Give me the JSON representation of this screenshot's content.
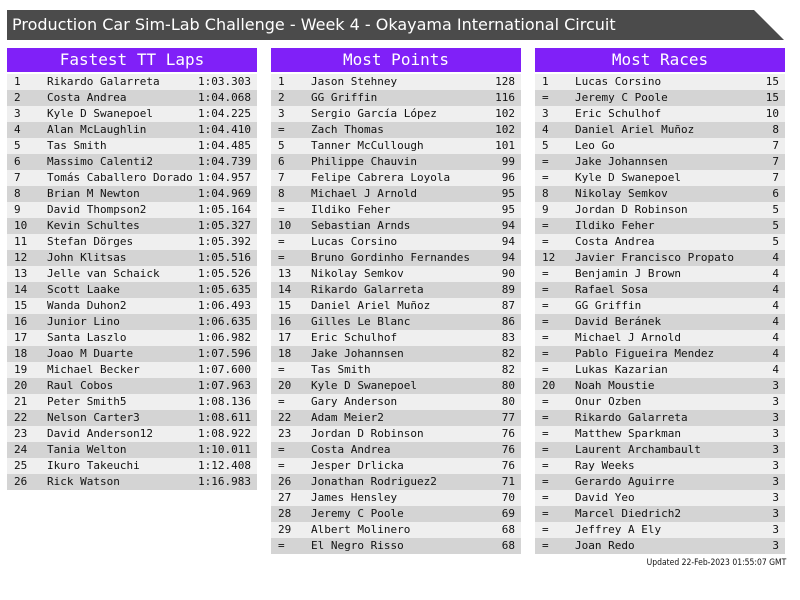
{
  "title": "Production Car Sim-Lab Challenge - Week 4 - Okayama International Circuit",
  "tables": [
    {
      "title": "Fastest TT Laps",
      "rows": [
        [
          "1",
          "Rikardo Galarreta",
          "1:03.303"
        ],
        [
          "2",
          "Costa Andrea",
          "1:04.068"
        ],
        [
          "3",
          "Kyle D Swanepoel",
          "1:04.225"
        ],
        [
          "4",
          "Alan McLaughlin",
          "1:04.410"
        ],
        [
          "5",
          "Tas Smith",
          "1:04.485"
        ],
        [
          "6",
          "Massimo Calenti2",
          "1:04.739"
        ],
        [
          "7",
          "Tomás Caballero Dorado",
          "1:04.957"
        ],
        [
          "8",
          "Brian M Newton",
          "1:04.969"
        ],
        [
          "9",
          "David Thompson2",
          "1:05.164"
        ],
        [
          "10",
          "Kevin Schultes",
          "1:05.327"
        ],
        [
          "11",
          "Stefan Dörges",
          "1:05.392"
        ],
        [
          "12",
          "John Klitsas",
          "1:05.516"
        ],
        [
          "13",
          "Jelle van Schaick",
          "1:05.526"
        ],
        [
          "14",
          "Scott Laake",
          "1:05.635"
        ],
        [
          "15",
          "Wanda Duhon2",
          "1:06.493"
        ],
        [
          "16",
          "Junior Lino",
          "1:06.635"
        ],
        [
          "17",
          "Santa Laszlo",
          "1:06.982"
        ],
        [
          "18",
          "Joao M Duarte",
          "1:07.596"
        ],
        [
          "19",
          "Michael Becker",
          "1:07.600"
        ],
        [
          "20",
          "Raul Cobos",
          "1:07.963"
        ],
        [
          "21",
          "Peter Smith5",
          "1:08.136"
        ],
        [
          "22",
          "Nelson Carter3",
          "1:08.611"
        ],
        [
          "23",
          "David Anderson12",
          "1:08.922"
        ],
        [
          "24",
          "Tania Welton",
          "1:10.011"
        ],
        [
          "25",
          "Ikuro Takeuchi",
          "1:12.408"
        ],
        [
          "26",
          "Rick Watson",
          "1:16.983"
        ]
      ]
    },
    {
      "title": "Most Points",
      "rows": [
        [
          "1",
          "Jason Stehney",
          128
        ],
        [
          "2",
          "GG Griffin",
          116
        ],
        [
          "3",
          "Sergio García López",
          102
        ],
        [
          "=",
          "Zach Thomas",
          102
        ],
        [
          "5",
          "Tanner McCullough",
          101
        ],
        [
          "6",
          "Philippe Chauvin",
          99
        ],
        [
          "7",
          "Felipe Cabrera Loyola",
          96
        ],
        [
          "8",
          "Michael J Arnold",
          95
        ],
        [
          "=",
          "Ildiko Feher",
          95
        ],
        [
          "10",
          "Sebastian Arnds",
          94
        ],
        [
          "=",
          "Lucas Corsino",
          94
        ],
        [
          "=",
          "Bruno Gordinho Fernandes",
          94
        ],
        [
          "13",
          "Nikolay Semkov",
          90
        ],
        [
          "14",
          "Rikardo Galarreta",
          89
        ],
        [
          "15",
          "Daniel Ariel Muñoz",
          87
        ],
        [
          "16",
          "Gilles Le Blanc",
          86
        ],
        [
          "17",
          "Eric Schulhof",
          83
        ],
        [
          "18",
          "Jake Johannsen",
          82
        ],
        [
          "=",
          "Tas Smith",
          82
        ],
        [
          "20",
          "Kyle D Swanepoel",
          80
        ],
        [
          "=",
          "Gary Anderson",
          80
        ],
        [
          "22",
          "Adam Meier2",
          77
        ],
        [
          "23",
          "Jordan D Robinson",
          76
        ],
        [
          "=",
          "Costa Andrea",
          76
        ],
        [
          "=",
          "Jesper Drlicka",
          76
        ],
        [
          "26",
          "Jonathan Rodriguez2",
          71
        ],
        [
          "27",
          "James Hensley",
          70
        ],
        [
          "28",
          "Jeremy C Poole",
          69
        ],
        [
          "29",
          "Albert Molinero",
          68
        ],
        [
          "=",
          "El Negro Risso",
          68
        ]
      ]
    },
    {
      "title": "Most Races",
      "rows": [
        [
          "1",
          "Lucas Corsino",
          15
        ],
        [
          "=",
          "Jeremy C Poole",
          15
        ],
        [
          "3",
          "Eric Schulhof",
          10
        ],
        [
          "4",
          "Daniel Ariel Muñoz",
          8
        ],
        [
          "5",
          "Leo Go",
          7
        ],
        [
          "=",
          "Jake Johannsen",
          7
        ],
        [
          "=",
          "Kyle D Swanepoel",
          7
        ],
        [
          "8",
          "Nikolay Semkov",
          6
        ],
        [
          "9",
          "Jordan D Robinson",
          5
        ],
        [
          "=",
          "Ildiko Feher",
          5
        ],
        [
          "=",
          "Costa Andrea",
          5
        ],
        [
          "12",
          "Javier Francisco Propato",
          4
        ],
        [
          "=",
          "Benjamin J Brown",
          4
        ],
        [
          "=",
          "Rafael Sosa",
          4
        ],
        [
          "=",
          "GG Griffin",
          4
        ],
        [
          "=",
          "David Beránek",
          4
        ],
        [
          "=",
          "Michael J Arnold",
          4
        ],
        [
          "=",
          "Pablo Figueira Mendez",
          4
        ],
        [
          "=",
          "Lukas Kazarian",
          4
        ],
        [
          "20",
          "Noah Moustie",
          3
        ],
        [
          "=",
          "Onur Ozben",
          3
        ],
        [
          "=",
          "Rikardo Galarreta",
          3
        ],
        [
          "=",
          "Matthew Sparkman",
          3
        ],
        [
          "=",
          "Laurent Archambault",
          3
        ],
        [
          "=",
          "Ray Weeks",
          3
        ],
        [
          "=",
          "Gerardo Aguirre",
          3
        ],
        [
          "=",
          "David Yeo",
          3
        ],
        [
          "=",
          "Marcel Diedrich2",
          3
        ],
        [
          "=",
          "Jeffrey A Ely",
          3
        ],
        [
          "=",
          "Joan Redo",
          3
        ]
      ]
    }
  ],
  "footer": "Updated 22-Feb-2023 01:55:07 GMT"
}
